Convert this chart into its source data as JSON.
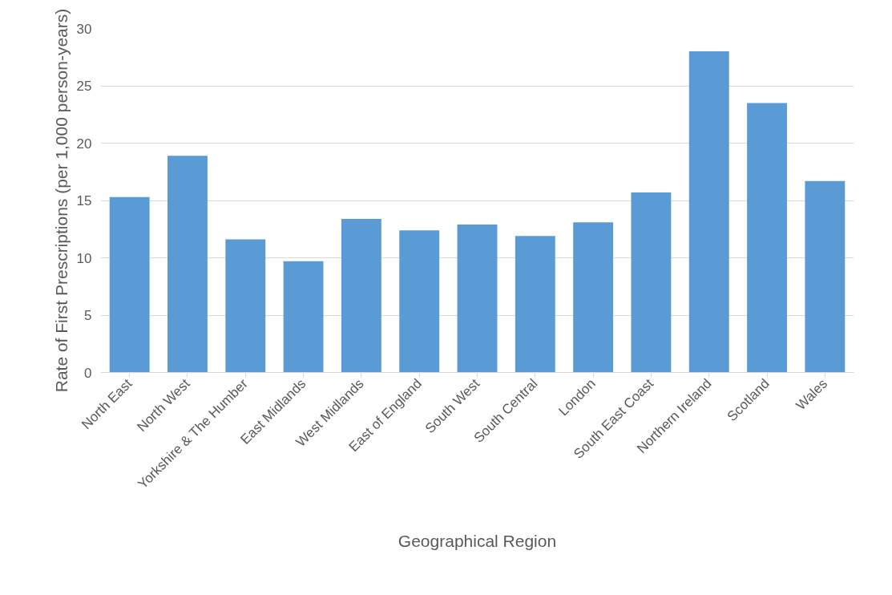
{
  "chart_data": {
    "type": "bar",
    "xlabel": "Geographical Region",
    "ylabel": "Rate of First Prescriptions (per 1,000 person-years)",
    "categories": [
      "North East",
      "North West",
      "Yorkshire & The Humber",
      "East Midlands",
      "West Midlands",
      "East of England",
      "South West",
      "South Central",
      "London",
      "South East Coast",
      "Northern Ireland",
      "Scotland",
      "Wales"
    ],
    "values": [
      15.3,
      18.9,
      11.6,
      9.7,
      13.4,
      12.4,
      12.9,
      11.9,
      13.1,
      15.7,
      28.0,
      23.5,
      16.7
    ],
    "color": "#5b9bd5",
    "ylim": [
      0,
      30
    ],
    "yticks": [
      0,
      5,
      10,
      15,
      20,
      25,
      30
    ],
    "grid": "y"
  }
}
